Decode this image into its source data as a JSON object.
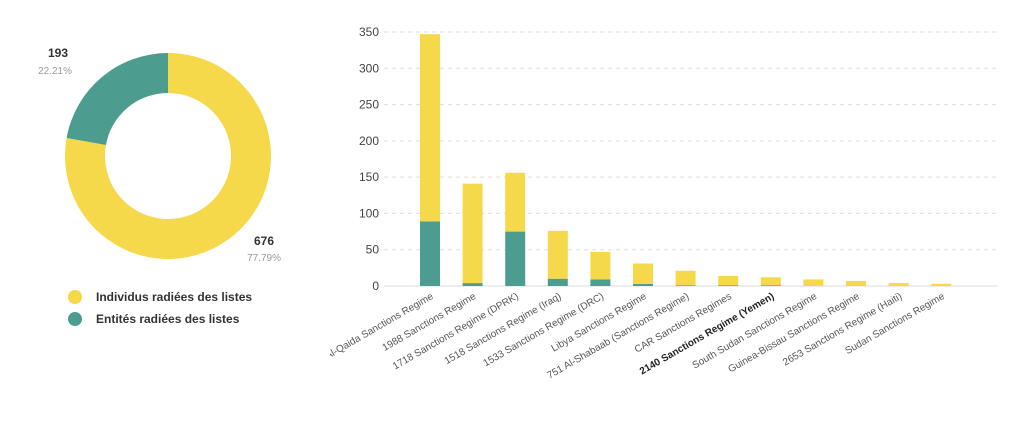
{
  "colors": {
    "individus": "#F6D84B",
    "entites": "#4C9D8F",
    "grid": "#DDDDDD",
    "text": "#444444",
    "subtext": "#999999"
  },
  "donut": {
    "labels": [
      {
        "value": "193",
        "pct": "22.21%"
      },
      {
        "value": "676",
        "pct": "77.79%"
      }
    ],
    "legend": [
      {
        "label": "Individus radiées des listes",
        "color": "#F6D84B"
      },
      {
        "label": "Entités radiées des listes",
        "color": "#4C9D8F"
      }
    ]
  },
  "chart_data": [
    {
      "type": "pie",
      "variant": "donut",
      "slices": [
        {
          "name": "Individus radiées des listes",
          "value": 676,
          "percent": 77.79,
          "color": "#F6D84B"
        },
        {
          "name": "Entités radiées des listes",
          "value": 193,
          "percent": 22.21,
          "color": "#4C9D8F"
        }
      ],
      "legend_position": "bottom-left"
    },
    {
      "type": "bar",
      "stacked": true,
      "categories": [
        "ISIL/Al-Qaida Sanctions Regime",
        "1988 Sanctions Regime",
        "1718 Sanctions Regime (DPRK)",
        "1518 Sanctions Regime (Iraq)",
        "1533 Sanctions Regime (DRC)",
        "Libya Sanctions Regime",
        "751 Al-Shabaab (Sanctions Regime)",
        "CAR Sanctions Regimes",
        "2140 Sanctions Regime (Yemen)",
        "South Sudan Sanctions Regime",
        "Guinea-Bissau Sanctions Regime",
        "2653 Sanctions Regime (Haiti)",
        "Sudan Sanctions Regime"
      ],
      "highlighted_category": "2140 Sanctions Regime (Yemen)",
      "series": [
        {
          "name": "Entités radiées des listes",
          "color": "#4C9D8F",
          "values": [
            89,
            4,
            75,
            10,
            9,
            3,
            1,
            1,
            1,
            0,
            0,
            0,
            0
          ]
        },
        {
          "name": "Individus radiées des listes",
          "color": "#F6D84B",
          "values": [
            258,
            137,
            81,
            66,
            38,
            28,
            20,
            13,
            11,
            9,
            7,
            4,
            3
          ]
        }
      ],
      "yticks": [
        0,
        50,
        100,
        150,
        200,
        250,
        300,
        350
      ],
      "ylim": [
        0,
        350
      ],
      "grid": true,
      "grid_style": "dashed"
    }
  ]
}
